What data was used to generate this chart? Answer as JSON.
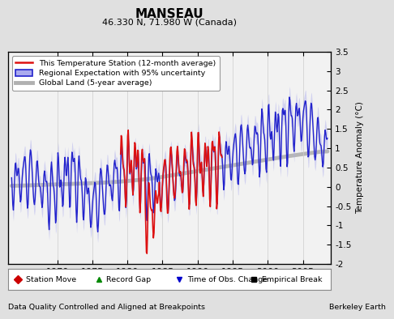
{
  "title": "MANSEAU",
  "subtitle": "46.330 N, 71.980 W (Canada)",
  "ylabel": "Temperature Anomaly (°C)",
  "xlabel_bottom": "Data Quality Controlled and Aligned at Breakpoints",
  "xlabel_right": "Berkeley Earth",
  "year_start": 1963,
  "year_end": 2009,
  "yticks": [
    -2,
    -1.5,
    -1,
    -0.5,
    0,
    0.5,
    1,
    1.5,
    2,
    2.5,
    3,
    3.5
  ],
  "xticks": [
    1970,
    1975,
    1980,
    1985,
    1990,
    1995,
    2000,
    2005
  ],
  "bg_color": "#e0e0e0",
  "plot_bg_color": "#f2f2f2",
  "legend_entries": [
    "This Temperature Station (12-month average)",
    "Regional Expectation with 95% uncertainty",
    "Global Land (5-year average)"
  ],
  "marker_legend": [
    {
      "label": "Station Move",
      "color": "#cc0000",
      "marker": "D"
    },
    {
      "label": "Record Gap",
      "color": "#008800",
      "marker": "^"
    },
    {
      "label": "Time of Obs. Change",
      "color": "#0000cc",
      "marker": "v"
    },
    {
      "label": "Empirical Break",
      "color": "#000000",
      "marker": "s"
    }
  ]
}
